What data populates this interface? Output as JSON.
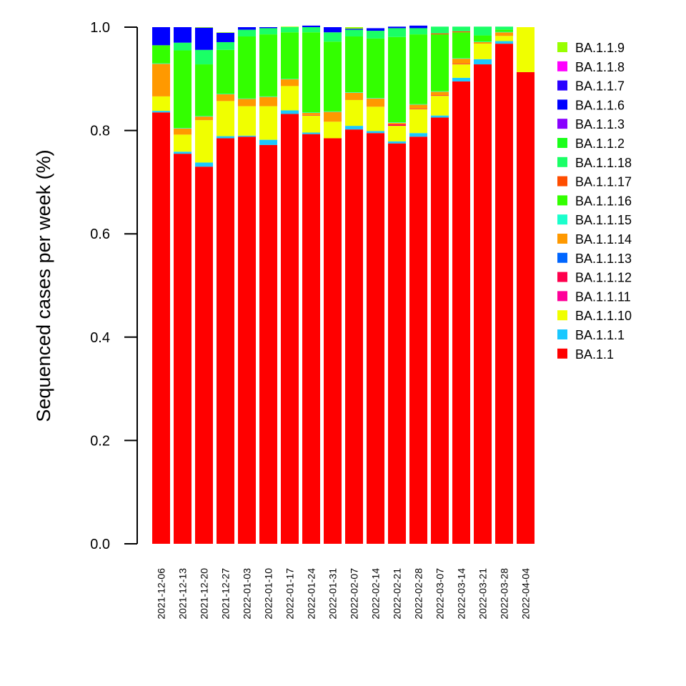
{
  "chart_data": {
    "type": "bar",
    "stacked": true,
    "ylabel": "Sequenced cases per week (%)",
    "xlabel": "",
    "ylim": [
      0,
      1
    ],
    "yticks": [
      "0.0",
      "0.2",
      "0.4",
      "0.6",
      "0.8",
      "1.0"
    ],
    "grid": false,
    "legend_position": "right",
    "categories": [
      "2021-12-06",
      "2021-12-13",
      "2021-12-20",
      "2021-12-27",
      "2022-01-03",
      "2022-01-10",
      "2022-01-17",
      "2022-01-24",
      "2022-01-31",
      "2022-02-07",
      "2022-02-14",
      "2022-02-21",
      "2022-02-28",
      "2022-03-07",
      "2022-03-14",
      "2022-03-21",
      "2022-03-28",
      "2022-04-04"
    ],
    "series": [
      {
        "name": "BA.1.1",
        "color": "#FF0000",
        "values": [
          0.835,
          0.755,
          0.73,
          0.785,
          0.788,
          0.772,
          0.832,
          0.793,
          0.785,
          0.802,
          0.795,
          0.775,
          0.788,
          0.825,
          0.895,
          0.928,
          0.968,
          0.913
        ]
      },
      {
        "name": "BA.1.1.1",
        "color": "#1AC8FF",
        "values": [
          0.003,
          0.004,
          0.008,
          0.004,
          0.002,
          0.01,
          0.007,
          0.003,
          0.0,
          0.007,
          0.004,
          0.004,
          0.007,
          0.004,
          0.007,
          0.01,
          0.005,
          0.0
        ]
      },
      {
        "name": "BA.1.1.10",
        "color": "#F0FF00",
        "values": [
          0.028,
          0.033,
          0.082,
          0.068,
          0.057,
          0.065,
          0.047,
          0.033,
          0.032,
          0.05,
          0.047,
          0.03,
          0.046,
          0.038,
          0.026,
          0.03,
          0.01,
          0.087
        ]
      },
      {
        "name": "BA.1.1.11",
        "color": "#FF0099",
        "values": [
          0,
          0,
          0,
          0,
          0,
          0,
          0,
          0,
          0,
          0,
          0,
          0,
          0,
          0,
          0,
          0,
          0,
          0
        ]
      },
      {
        "name": "BA.1.1.12",
        "color": "#FF004D",
        "values": [
          0,
          0,
          0,
          0,
          0,
          0,
          0,
          0.001,
          0,
          0,
          0,
          0.003,
          0.001,
          0.001,
          0.001,
          0,
          0,
          0
        ]
      },
      {
        "name": "BA.1.1.13",
        "color": "#0066FF",
        "values": [
          0,
          0,
          0,
          0,
          0,
          0,
          0,
          0,
          0,
          0,
          0,
          0,
          0,
          0,
          0,
          0,
          0,
          0
        ]
      },
      {
        "name": "BA.1.1.14",
        "color": "#FF9900",
        "values": [
          0.063,
          0.012,
          0.007,
          0.013,
          0.014,
          0.018,
          0.013,
          0.004,
          0.019,
          0.014,
          0.016,
          0.003,
          0.008,
          0.007,
          0.01,
          0.003,
          0.007,
          0
        ]
      },
      {
        "name": "BA.1.1.15",
        "color": "#1AFFCC",
        "values": [
          0.001,
          0.001,
          0.001,
          0.001,
          0.001,
          0.001,
          0.001,
          0.001,
          0.001,
          0.001,
          0.001,
          0.001,
          0.001,
          0.001,
          0.001,
          0.001,
          0.001,
          0
        ]
      },
      {
        "name": "BA.1.1.16",
        "color": "#33FF00",
        "values": [
          0.035,
          0.15,
          0.1,
          0.085,
          0.12,
          0.12,
          0.09,
          0.155,
          0.135,
          0.108,
          0.115,
          0.165,
          0.135,
          0.11,
          0.05,
          0.012,
          0.004,
          0
        ]
      },
      {
        "name": "BA.1.1.17",
        "color": "#FF4D00",
        "values": [
          0,
          0,
          0,
          0,
          0,
          0,
          0,
          0,
          0,
          0,
          0,
          0,
          0,
          0.002,
          0.002,
          0,
          0,
          0
        ]
      },
      {
        "name": "BA.1.1.18",
        "color": "#1AFF66",
        "values": [
          0,
          0.015,
          0.028,
          0.015,
          0.013,
          0.012,
          0.01,
          0.01,
          0.018,
          0.013,
          0.015,
          0.017,
          0.012,
          0.013,
          0.009,
          0.017,
          0.006,
          0
        ]
      },
      {
        "name": "BA.1.1.2",
        "color": "#1AFF1A",
        "values": [
          0,
          0,
          0,
          0,
          0,
          0,
          0,
          0,
          0,
          0,
          0,
          0,
          0,
          0,
          0,
          0,
          0,
          0
        ]
      },
      {
        "name": "BA.1.1.3",
        "color": "#8800FF",
        "values": [
          0,
          0,
          0,
          0,
          0,
          0,
          0,
          0,
          0,
          0,
          0,
          0,
          0,
          0,
          0,
          0,
          0,
          0
        ]
      },
      {
        "name": "BA.1.1.6",
        "color": "#0000FF",
        "values": [
          0.035,
          0.03,
          0.043,
          0.018,
          0.005,
          0.002,
          0.0,
          0.003,
          0.01,
          0.002,
          0.005,
          0.003,
          0.005,
          0.0,
          0.0,
          0.0,
          0.0,
          0
        ]
      },
      {
        "name": "BA.1.1.7",
        "color": "#2A00FF",
        "values": [
          0,
          0,
          0,
          0,
          0,
          0,
          0,
          0,
          0,
          0,
          0,
          0,
          0,
          0,
          0,
          0,
          0,
          0
        ]
      },
      {
        "name": "BA.1.1.8",
        "color": "#FF00FF",
        "values": [
          0,
          0,
          0,
          0,
          0,
          0,
          0,
          0,
          0,
          0,
          0,
          0,
          0,
          0,
          0,
          0,
          0,
          0
        ]
      },
      {
        "name": "BA.1.1.9",
        "color": "#99FF00",
        "values": [
          0,
          0,
          0.001,
          0.001,
          0,
          0,
          0.001,
          0,
          0,
          0.003,
          0,
          0,
          0,
          0,
          0,
          0,
          0,
          0
        ]
      }
    ],
    "legend_order": [
      "BA.1.1.9",
      "BA.1.1.8",
      "BA.1.1.7",
      "BA.1.1.6",
      "BA.1.1.3",
      "BA.1.1.2",
      "BA.1.1.18",
      "BA.1.1.17",
      "BA.1.1.16",
      "BA.1.1.15",
      "BA.1.1.14",
      "BA.1.1.13",
      "BA.1.1.12",
      "BA.1.1.11",
      "BA.1.1.10",
      "BA.1.1.1",
      "BA.1.1"
    ]
  }
}
